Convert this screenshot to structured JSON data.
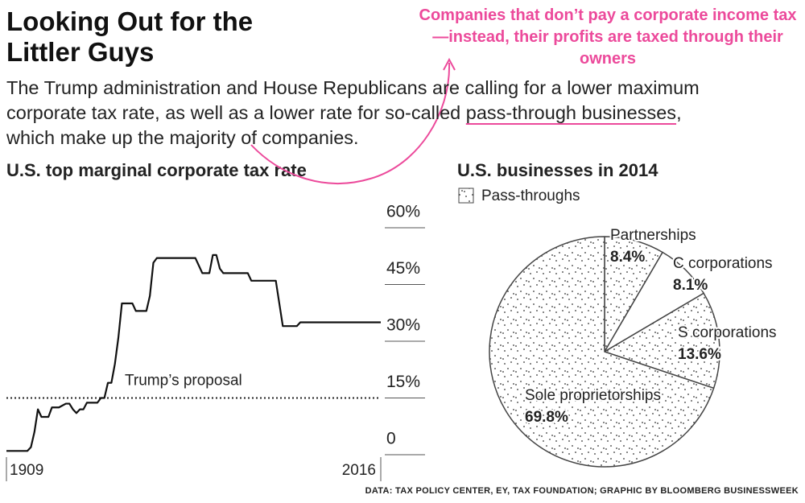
{
  "header": {
    "title": "Looking Out for the Littler Guys",
    "subtitle_before": "The Trump administration and House Republicans are calling for a lower maximum corporate tax rate, as well as a lower rate for so-called ",
    "subtitle_link": "pass-through businesses",
    "subtitle_after": ", which make up the majority of companies.",
    "annotation": "Companies that don’t pay a corporate income tax—instead, their profits are taxed through their owners"
  },
  "footer": {
    "source": "DATA: TAX POLICY CENTER, EY, TAX FOUNDATION; GRAPHIC BY BLOOMBERG BUSINESSWEEK"
  },
  "chart_data": [
    {
      "type": "line",
      "title": "U.S. top marginal corporate tax rate",
      "color": "#111111",
      "x": [
        1909,
        1910,
        1911,
        1912,
        1913,
        1914,
        1915,
        1916,
        1917,
        1918,
        1919,
        1920,
        1921,
        1922,
        1923,
        1924,
        1925,
        1926,
        1927,
        1928,
        1929,
        1930,
        1931,
        1932,
        1933,
        1934,
        1935,
        1936,
        1937,
        1938,
        1939,
        1940,
        1941,
        1942,
        1943,
        1944,
        1945,
        1946,
        1947,
        1948,
        1949,
        1950,
        1951,
        1952,
        1953,
        1954,
        1955,
        1956,
        1957,
        1958,
        1959,
        1960,
        1961,
        1962,
        1963,
        1964,
        1965,
        1966,
        1967,
        1968,
        1969,
        1970,
        1971,
        1972,
        1973,
        1974,
        1975,
        1976,
        1977,
        1978,
        1979,
        1980,
        1981,
        1982,
        1983,
        1984,
        1985,
        1986,
        1987,
        1988,
        1989,
        1990,
        1991,
        1992,
        1993,
        1994,
        1995,
        1996,
        1997,
        1998,
        1999,
        2000,
        2001,
        2002,
        2003,
        2004,
        2005,
        2006,
        2007,
        2008,
        2009,
        2010,
        2011,
        2012,
        2013,
        2014,
        2015,
        2016
      ],
      "values": [
        1,
        1,
        1,
        1,
        1,
        1,
        1,
        2,
        6,
        12,
        10,
        10,
        10,
        12.5,
        12.5,
        12.5,
        13,
        13.5,
        13.5,
        12,
        11,
        12,
        12,
        13.75,
        13.75,
        13.75,
        13.75,
        15,
        15,
        19,
        19,
        24,
        31,
        40,
        40,
        40,
        40,
        38,
        38,
        38,
        38,
        42,
        50.75,
        52,
        52,
        52,
        52,
        52,
        52,
        52,
        52,
        52,
        52,
        52,
        52,
        50,
        48,
        48,
        48,
        52.8,
        52.8,
        49.2,
        48,
        48,
        48,
        48,
        48,
        48,
        48,
        48,
        46,
        46,
        46,
        46,
        46,
        46,
        46,
        46,
        40,
        34,
        34,
        34,
        34,
        34,
        35,
        35,
        35,
        35,
        35,
        35,
        35,
        35,
        35,
        35,
        35,
        35,
        35,
        35,
        35,
        35,
        35,
        35,
        35,
        35,
        35,
        35,
        35,
        35
      ],
      "xlim": [
        1909,
        2016
      ],
      "xticks": [
        1909,
        2016
      ],
      "ylim": [
        0,
        60
      ],
      "yticks": [
        0,
        {
          "value": 15,
          "label": "15%"
        },
        {
          "value": 30,
          "label": "30%"
        },
        {
          "value": 45,
          "label": "45%"
        },
        {
          "value": 60,
          "label": "60%"
        }
      ],
      "reference": {
        "value": 15,
        "label": "Trump’s proposal"
      }
    },
    {
      "type": "pie",
      "title": "U.S. businesses in 2014",
      "legend": "Pass-throughs",
      "categories": [
        "Partnerships",
        "C corporations",
        "S corporations",
        "Sole proprietorships"
      ],
      "values": [
        8.4,
        8.1,
        13.6,
        69.8
      ],
      "value_labels": [
        "8.4%",
        "8.1%",
        "13.6%",
        "69.8%"
      ],
      "pass_through": [
        true,
        false,
        true,
        true
      ]
    }
  ]
}
